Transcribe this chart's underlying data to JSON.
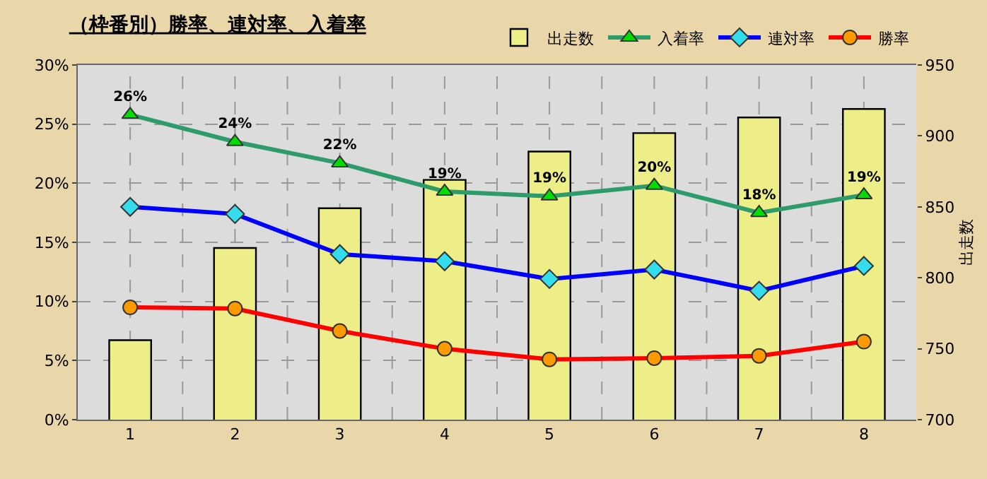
{
  "chart_data": {
    "type": "line",
    "title": "（枠番別）勝率、連対率、入着率",
    "y2label": "出走数",
    "categories": [
      "1",
      "2",
      "3",
      "4",
      "5",
      "6",
      "7",
      "8"
    ],
    "series": [
      {
        "name": "出走数",
        "type": "bar",
        "axis": "y2",
        "color": "#eeee88",
        "values": [
          756,
          821,
          849,
          869,
          889,
          902,
          913,
          919
        ]
      },
      {
        "name": "入着率",
        "color": "#2e9b6a",
        "marker": "triangle",
        "values": [
          25.8,
          23.5,
          21.7,
          19.3,
          18.9,
          19.8,
          17.5,
          19.0
        ],
        "value_labels": [
          "26%",
          "24%",
          "22%",
          "19%",
          "19%",
          "20%",
          "18%",
          "19%"
        ]
      },
      {
        "name": "連対率",
        "color": "#0000ff",
        "marker": "diamond",
        "values": [
          18.0,
          17.4,
          14.0,
          13.4,
          11.9,
          12.7,
          10.9,
          13.0
        ]
      },
      {
        "name": "勝率",
        "color": "#ff0000",
        "marker": "circle",
        "values": [
          9.5,
          9.4,
          7.5,
          6.0,
          5.1,
          5.2,
          5.4,
          6.6
        ]
      }
    ],
    "ylim": [
      0,
      30
    ],
    "yticks": [
      {
        "value": 0,
        "label": "0%"
      },
      {
        "value": 5,
        "label": "5%"
      },
      {
        "value": 10,
        "label": "10%"
      },
      {
        "value": 15,
        "label": "15%"
      },
      {
        "value": 20,
        "label": "20%"
      },
      {
        "value": 25,
        "label": "25%"
      },
      {
        "value": 30,
        "label": "30%"
      }
    ],
    "y2lim": [
      700,
      950
    ],
    "y2ticks": [
      700,
      750,
      800,
      850,
      900,
      950
    ],
    "grid": true,
    "legend": "top right"
  }
}
